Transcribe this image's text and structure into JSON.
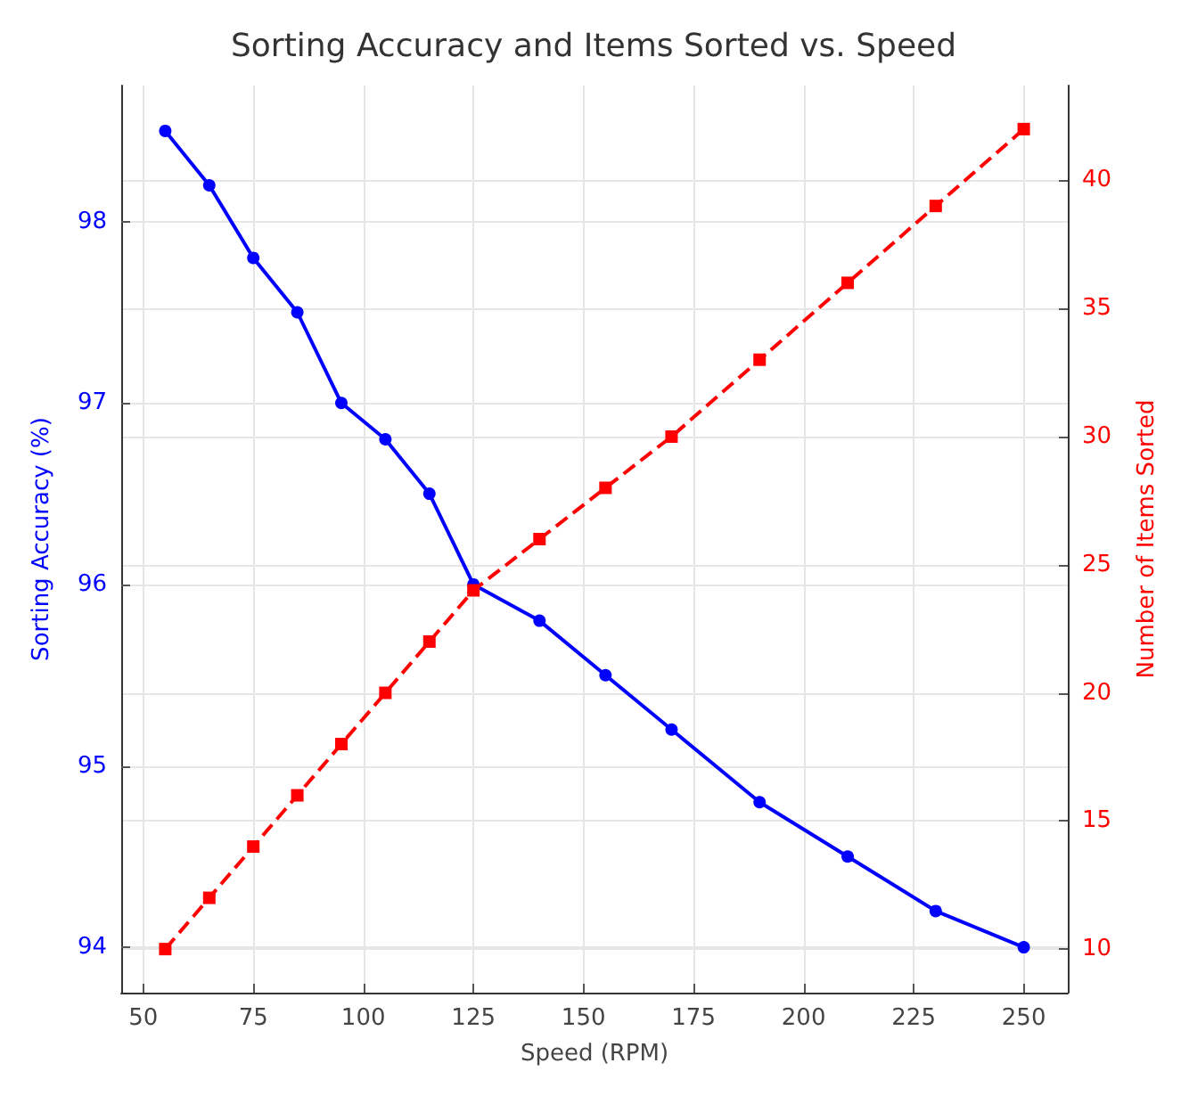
{
  "chart_data": {
    "type": "line",
    "title": "Sorting Accuracy and Items Sorted vs. Speed",
    "xlabel": "Speed (RPM)",
    "ylabel": "Sorting Accuracy (%)",
    "y2label": "Number of Items Sorted",
    "x": [
      55,
      65,
      75,
      85,
      95,
      105,
      115,
      125,
      140,
      155,
      170,
      190,
      210,
      230,
      250
    ],
    "series": [
      {
        "color": "#0000ff",
        "marker": "circle",
        "line_style": "solid",
        "values": [
          98.5,
          98.2,
          97.8,
          97.5,
          97.0,
          96.8,
          96.5,
          96.0,
          95.8,
          95.5,
          95.2,
          94.8,
          94.5,
          94.2,
          94.0
        ]
      },
      {
        "color": "#ff0000",
        "marker": "square",
        "line_style": "dashed",
        "axis": "y2",
        "values": [
          10,
          12,
          14,
          16,
          18,
          20,
          22,
          24,
          26,
          28,
          30,
          33,
          36,
          39,
          42
        ]
      }
    ],
    "xlim": [
      45,
      260
    ],
    "xticks": [
      50,
      75,
      100,
      125,
      150,
      175,
      200,
      225,
      250
    ],
    "ylim": [
      93.75,
      98.75
    ],
    "yticks": [
      94,
      95,
      96,
      97,
      98
    ],
    "y2lim": [
      8.3,
      43.7
    ],
    "y2ticks": [
      10,
      15,
      20,
      25,
      30,
      35,
      40
    ],
    "grid": true
  }
}
